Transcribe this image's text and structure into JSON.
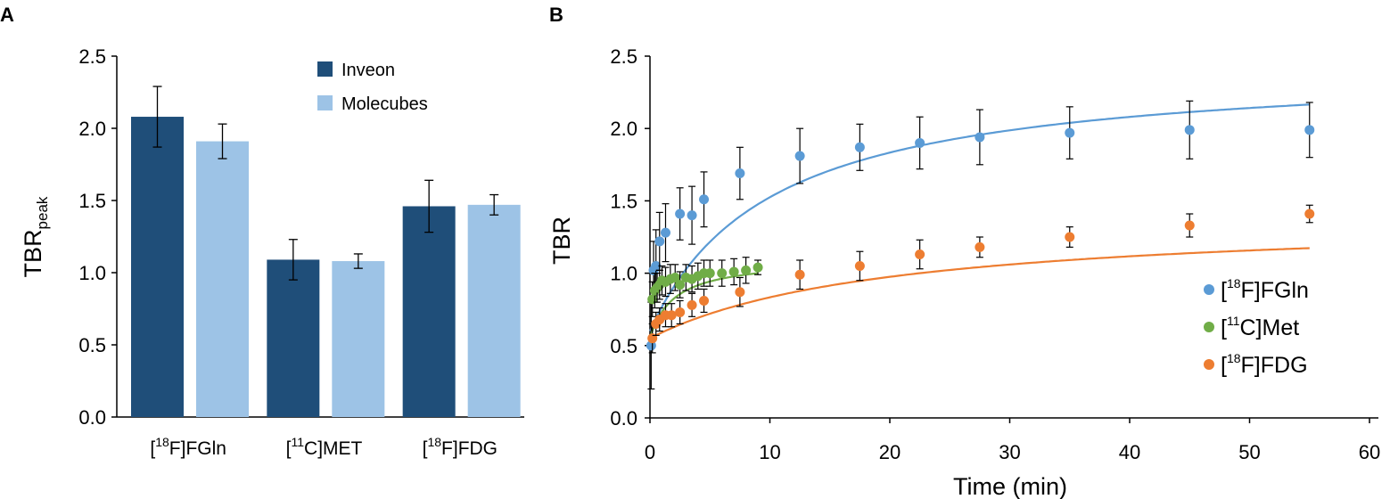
{
  "figure": {
    "panel_a_letter": "A",
    "panel_b_letter": "B"
  },
  "chart_data": [
    {
      "panel": "A",
      "type": "bar",
      "ylabel_main": "TBR",
      "ylabel_sub": "peak",
      "xlabel": "",
      "ylim": [
        0,
        2.5
      ],
      "yticks": [
        "0.0",
        "0.5",
        "1.0",
        "1.5",
        "2.0",
        "2.5"
      ],
      "categories": [
        {
          "pre": "[",
          "sup": "18",
          "post": "F]FGln"
        },
        {
          "pre": "[",
          "sup": "11",
          "post": "C]MET"
        },
        {
          "pre": "[",
          "sup": "18",
          "post": "F]FDG"
        }
      ],
      "series": [
        {
          "name": "Inveon",
          "color": "#1f4e79",
          "values": [
            2.08,
            1.09,
            1.46
          ],
          "errors": [
            0.21,
            0.14,
            0.18
          ]
        },
        {
          "name": "Molecubes",
          "color": "#9dc3e6",
          "values": [
            1.91,
            1.08,
            1.47
          ],
          "errors": [
            0.12,
            0.05,
            0.07
          ]
        }
      ],
      "legend_position": "top-right"
    },
    {
      "panel": "B",
      "type": "scatter",
      "xlabel": "Time (min)",
      "ylabel": "TBR",
      "xlim": [
        0,
        60
      ],
      "ylim": [
        0,
        2.5
      ],
      "xticks": [
        "0",
        "10",
        "20",
        "30",
        "40",
        "50",
        "60"
      ],
      "yticks": [
        "0.0",
        "0.5",
        "1.0",
        "1.5",
        "2.0",
        "2.5"
      ],
      "legend_position": "bottom-right",
      "series": [
        {
          "name_pre": "[",
          "name_sup": "18",
          "name_post": "F]FGln",
          "color": "#5b9bd5",
          "x": [
            0.1,
            0.3,
            0.5,
            0.8,
            1.3,
            2.5,
            3.5,
            4.5,
            7.5,
            12.5,
            17.5,
            22.5,
            27.5,
            35,
            45,
            55
          ],
          "y": [
            0.5,
            1.02,
            1.05,
            1.22,
            1.28,
            1.41,
            1.4,
            1.51,
            1.69,
            1.81,
            1.87,
            1.9,
            1.94,
            1.97,
            1.99,
            1.99
          ],
          "err": [
            0.3,
            0.2,
            0.25,
            0.2,
            0.2,
            0.18,
            0.2,
            0.19,
            0.18,
            0.19,
            0.16,
            0.18,
            0.19,
            0.18,
            0.2,
            0.19
          ],
          "fit_a": 1.85,
          "fit_b": 10,
          "fit_c": 0.6
        },
        {
          "name_pre": "[",
          "name_sup": "11",
          "name_post": "C]Met",
          "color": "#70ad47",
          "x": [
            0.2,
            0.4,
            0.6,
            0.8,
            1.0,
            1.3,
            1.7,
            2.1,
            2.5,
            3.0,
            3.5,
            4.0,
            4.5,
            5.0,
            6.0,
            7.0,
            8.0,
            9.0
          ],
          "y": [
            0.82,
            0.88,
            0.9,
            0.92,
            0.95,
            0.94,
            0.96,
            0.97,
            0.92,
            0.97,
            0.96,
            0.98,
            1.0,
            1.0,
            1.0,
            1.01,
            1.02,
            1.04
          ],
          "err": [
            0.12,
            0.12,
            0.1,
            0.1,
            0.1,
            0.1,
            0.1,
            0.09,
            0.09,
            0.09,
            0.09,
            0.09,
            0.09,
            0.09,
            0.09,
            0.09,
            0.09,
            0.05
          ],
          "fit_a": 0.55,
          "fit_b": 2,
          "fit_c": 0.55
        },
        {
          "name_pre": "[",
          "name_sup": "18",
          "name_post": "F]FDG",
          "color": "#ed7d31",
          "x": [
            0.2,
            0.5,
            0.8,
            1.3,
            1.8,
            2.5,
            3.5,
            4.5,
            7.5,
            12.5,
            17.5,
            22.5,
            27.5,
            35,
            45,
            55
          ],
          "y": [
            0.55,
            0.65,
            0.68,
            0.71,
            0.71,
            0.73,
            0.78,
            0.81,
            0.87,
            0.99,
            1.05,
            1.13,
            1.18,
            1.25,
            1.33,
            1.41
          ],
          "err": [
            0.1,
            0.08,
            0.08,
            0.08,
            0.08,
            0.08,
            0.08,
            0.08,
            0.1,
            0.1,
            0.1,
            0.1,
            0.07,
            0.07,
            0.08,
            0.06
          ],
          "fit_a": 0.85,
          "fit_b": 20,
          "fit_c": 0.55
        }
      ]
    }
  ]
}
